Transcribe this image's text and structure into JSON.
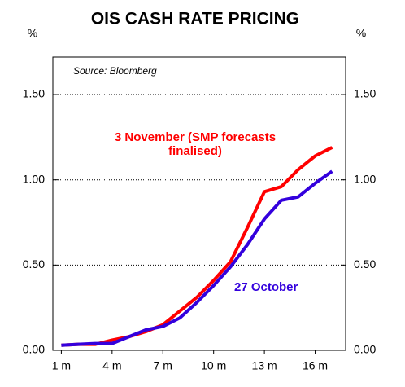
{
  "chart_data": {
    "type": "line",
    "title": "OIS CASH RATE PRICING",
    "y_unit": "%",
    "y2_unit": "%",
    "annotation": "Source: Bloomberg",
    "x": [
      1,
      2,
      3,
      4,
      5,
      6,
      7,
      8,
      9,
      10,
      11,
      12,
      13,
      14,
      15,
      16,
      17
    ],
    "xlim": [
      0.5,
      17.8
    ],
    "xticks": [
      {
        "value": 1,
        "label": "1 m"
      },
      {
        "value": 4,
        "label": "4 m"
      },
      {
        "value": 7,
        "label": "7 m"
      },
      {
        "value": 10,
        "label": "10 m"
      },
      {
        "value": 13,
        "label": "13 m"
      },
      {
        "value": 16,
        "label": "16 m"
      }
    ],
    "ylim": [
      0,
      1.72
    ],
    "yticks": [
      {
        "value": 0,
        "label": "0.00"
      },
      {
        "value": 0.5,
        "label": "0.50"
      },
      {
        "value": 1,
        "label": "1.00"
      },
      {
        "value": 1.5,
        "label": "1.50"
      }
    ],
    "y2lim": [
      0,
      1.72
    ],
    "y2ticks": [
      {
        "value": 0,
        "label": "0.00"
      },
      {
        "value": 0.5,
        "label": "0.50"
      },
      {
        "value": 1,
        "label": "1.00"
      },
      {
        "value": 1.5,
        "label": "1.50"
      }
    ],
    "grid": true,
    "series": [
      {
        "name": "3 November (SMP forecasts finalised)",
        "color": "#ff0000",
        "values": [
          0.03,
          0.035,
          0.035,
          0.06,
          0.08,
          0.11,
          0.15,
          0.23,
          0.31,
          0.41,
          0.52,
          0.72,
          0.93,
          0.96,
          1.06,
          1.14,
          1.19
        ]
      },
      {
        "name": "27 October",
        "color": "#3300dd",
        "values": [
          0.03,
          0.035,
          0.04,
          0.04,
          0.08,
          0.12,
          0.14,
          0.19,
          0.28,
          0.38,
          0.49,
          0.62,
          0.77,
          0.88,
          0.9,
          0.98,
          1.05
        ]
      }
    ]
  }
}
